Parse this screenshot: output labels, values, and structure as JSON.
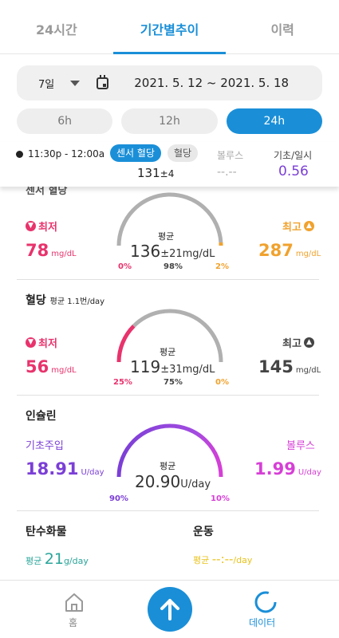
{
  "tabs": [
    {
      "label": "24시간"
    },
    {
      "label": "기간별추이"
    },
    {
      "label": "이력"
    }
  ],
  "datebar": {
    "period": "7일",
    "range": "2021. 5. 12 ~ 2021. 5. 18"
  },
  "hours": [
    {
      "label": "6h"
    },
    {
      "label": "12h"
    },
    {
      "label": "24h"
    }
  ],
  "summary": {
    "time": "11:30p - 12:00a",
    "cgm_chip": "센서 혈당",
    "bg_chip": "혈당",
    "cgm_value": "131",
    "cgm_sd": "±4",
    "bolus_label": "볼루스",
    "bolus_value": "--.--",
    "basal_label": "기초/일시",
    "basal_value": "0.56"
  },
  "sensor": {
    "min_label": "최저",
    "min_value": "78",
    "min_unit": "mg/dL",
    "max_label": "최고",
    "max_value": "287",
    "max_unit": "mg/dL",
    "avg_label": "평균",
    "avg_value": "136",
    "avg_sd": "±21",
    "avg_unit": "mg/dL",
    "pct_low": "0%",
    "pct_in": "98%",
    "pct_high": "2%",
    "low_fraction": 0.0,
    "high_fraction": 0.02
  },
  "bg": {
    "title": "혈당",
    "subtitle": "평균 1.1번/day",
    "min_label": "최저",
    "min_value": "56",
    "min_unit": "mg/dL",
    "max_label": "최고",
    "max_value": "145",
    "max_unit": "mg/dL",
    "avg_label": "평균",
    "avg_value": "119",
    "avg_sd": "±31",
    "avg_unit": "mg/dL",
    "pct_low": "25%",
    "pct_in": "75%",
    "pct_high": "0%",
    "low_fraction": 0.25,
    "high_fraction": 0.0
  },
  "insulin": {
    "title": "인슐린",
    "basal_label": "기초주입",
    "basal_value": "18.91",
    "basal_unit": "U/day",
    "bolus_label": "볼루스",
    "bolus_value": "1.99",
    "bolus_unit": "U/day",
    "avg_label": "평균",
    "avg_value": "20.90",
    "avg_unit": "U/day",
    "pct_basal": "90%",
    "pct_bolus": "10%",
    "basal_fraction": 0.9
  },
  "carbs": {
    "title": "탄수화물",
    "avg_label": "평균",
    "avg_value": "21",
    "avg_unit": "g/day"
  },
  "exercise": {
    "title": "운동",
    "avg_label": "평균",
    "avg_value": "--:--",
    "avg_unit": "/day"
  },
  "nav": {
    "home": "홈",
    "data": "데이터"
  },
  "colors": {
    "accent": "#1a8fd8",
    "low": "#e8336d",
    "high": "#f0a22e",
    "basal": "#7b3fd6",
    "bolus": "#d63fd6",
    "carbs": "#2aa59a",
    "exercise": "#e8c21a"
  }
}
